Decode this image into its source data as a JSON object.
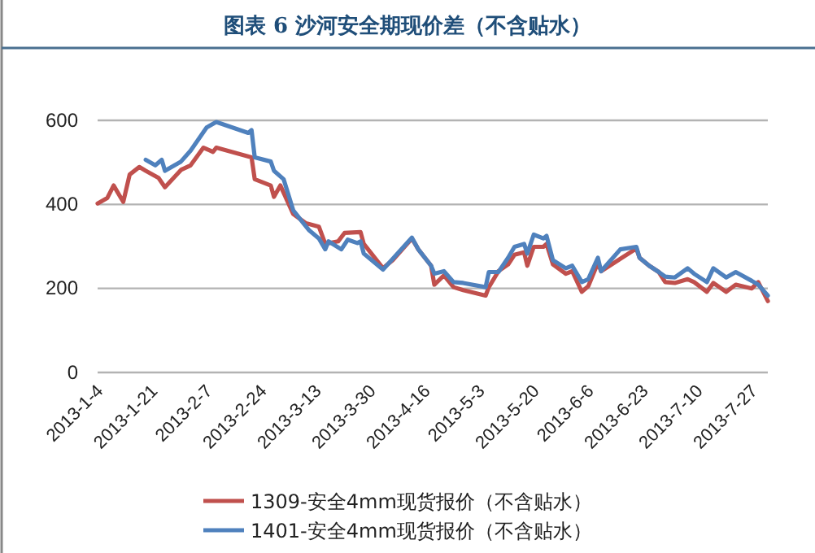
{
  "chart_data": {
    "type": "line",
    "title": "图表 6   沙河安全期现价差（不含贴水）",
    "ylim": [
      0,
      600
    ],
    "yticks": [
      0,
      200,
      400,
      600
    ],
    "xlim": [
      "2013-01-04",
      "2013-08-01"
    ],
    "xticks": [
      {
        "value": "2013-01-04",
        "label": "2013-1-4"
      },
      {
        "value": "2013-01-21",
        "label": "2013-1-21"
      },
      {
        "value": "2013-02-07",
        "label": "2013-2-7"
      },
      {
        "value": "2013-02-24",
        "label": "2013-2-24"
      },
      {
        "value": "2013-03-13",
        "label": "2013-3-13"
      },
      {
        "value": "2013-03-30",
        "label": "2013-3-30"
      },
      {
        "value": "2013-04-16",
        "label": "2013-4-16"
      },
      {
        "value": "2013-05-03",
        "label": "2013-5-3"
      },
      {
        "value": "2013-05-20",
        "label": "2013-5-20"
      },
      {
        "value": "2013-06-06",
        "label": "2013-6-6"
      },
      {
        "value": "2013-06-23",
        "label": "2013-6-23"
      },
      {
        "value": "2013-07-10",
        "label": "2013-7-10"
      },
      {
        "value": "2013-07-27",
        "label": "2013-7-27"
      }
    ],
    "grid": "y",
    "legend": "bottom",
    "marker": "none",
    "line_style": "solid",
    "series": [
      {
        "name": "1309-安全4mm现货报价（不含贴水）",
        "color": "#c0504d",
        "x": [
          "2013-01-04",
          "2013-01-07",
          "2013-01-09",
          "2013-01-12",
          "2013-01-14",
          "2013-01-17",
          "2013-01-19",
          "2013-01-23",
          "2013-01-25",
          "2013-01-30",
          "2013-02-02",
          "2013-02-06",
          "2013-02-09",
          "2013-02-10",
          "2013-02-21",
          "2013-02-22",
          "2013-02-27",
          "2013-02-28",
          "2013-03-02",
          "2013-03-06",
          "2013-03-10",
          "2013-03-14",
          "2013-03-16",
          "2013-03-20",
          "2013-03-22",
          "2013-03-27",
          "2013-03-28",
          "2013-04-03",
          "2013-04-06",
          "2013-04-12",
          "2013-04-14",
          "2013-04-18",
          "2013-04-19",
          "2013-04-22",
          "2013-04-25",
          "2013-04-28",
          "2013-05-05",
          "2013-05-06",
          "2013-05-09",
          "2013-05-12",
          "2013-05-14",
          "2013-05-17",
          "2013-05-18",
          "2013-05-20",
          "2013-05-23",
          "2013-05-24",
          "2013-05-26",
          "2013-05-30",
          "2013-06-01",
          "2013-06-04",
          "2013-06-06",
          "2013-06-09",
          "2013-06-10",
          "2013-06-16",
          "2013-06-21",
          "2013-06-22",
          "2013-06-25",
          "2013-06-28",
          "2013-06-30",
          "2013-07-03",
          "2013-07-07",
          "2013-07-09",
          "2013-07-13",
          "2013-07-15",
          "2013-07-19",
          "2013-07-22",
          "2013-07-27",
          "2013-07-29",
          "2013-08-01"
        ],
        "values": [
          402,
          415,
          445,
          406,
          471,
          489,
          480,
          463,
          441,
          482,
          493,
          535,
          525,
          535,
          512,
          460,
          445,
          418,
          445,
          377,
          355,
          347,
          306,
          312,
          332,
          334,
          306,
          248,
          267,
          319,
          293,
          254,
          209,
          231,
          203,
          196,
          183,
          203,
          241,
          257,
          280,
          286,
          254,
          299,
          299,
          306,
          257,
          235,
          241,
          192,
          205,
          261,
          241,
          null,
          295,
          273,
          254,
          239,
          215,
          213,
          222,
          215,
          192,
          213,
          192,
          209,
          200,
          215,
          170
        ]
      },
      {
        "name": "1401-安全4mm现货报价（不含贴水）",
        "color": "#4f81bd",
        "x": [
          "2013-01-19",
          "2013-01-22",
          "2013-01-24",
          "2013-01-25",
          "2013-01-30",
          "2013-02-02",
          "2013-02-07",
          "2013-02-10",
          "2013-02-20",
          "2013-02-21",
          "2013-02-22",
          "2013-02-27",
          "2013-02-28",
          "2013-03-03",
          "2013-03-06",
          "2013-03-09",
          "2013-03-11",
          "2013-03-14",
          "2013-03-16",
          "2013-03-17",
          "2013-03-21",
          "2013-03-23",
          "2013-03-26",
          "2013-03-27",
          "2013-03-28",
          "2013-04-03",
          "2013-04-12",
          "2013-04-14",
          "2013-04-18",
          "2013-04-19",
          "2013-04-22",
          "2013-04-25",
          "2013-04-28",
          "2013-05-05",
          "2013-05-06",
          "2013-05-09",
          "2013-05-12",
          "2013-05-14",
          "2013-05-17",
          "2013-05-18",
          "2013-05-20",
          "2013-05-23",
          "2013-05-24",
          "2013-05-26",
          "2013-05-30",
          "2013-06-01",
          "2013-06-04",
          "2013-06-06",
          "2013-06-09",
          "2013-06-10",
          "2013-06-16",
          "2013-06-21",
          "2013-06-22",
          "2013-06-25",
          "2013-06-28",
          "2013-06-30",
          "2013-07-03",
          "2013-07-07",
          "2013-07-09",
          "2013-07-13",
          "2013-07-15",
          "2013-07-19",
          "2013-07-22",
          "2013-07-27",
          "2013-07-29",
          "2013-08-01"
        ],
        "values": [
          506,
          493,
          506,
          480,
          502,
          528,
          583,
          596,
          570,
          577,
          512,
          502,
          480,
          460,
          386,
          357,
          338,
          319,
          293,
          312,
          293,
          316,
          308,
          312,
          283,
          245,
          321,
          293,
          254,
          235,
          241,
          215,
          213,
          203,
          239,
          239,
          273,
          299,
          306,
          283,
          328,
          319,
          325,
          267,
          248,
          254,
          215,
          222,
          273,
          241,
          293,
          299,
          273,
          254,
          239,
          228,
          226,
          248,
          235,
          215,
          248,
          226,
          239,
          218,
          209,
          183
        ]
      }
    ]
  }
}
